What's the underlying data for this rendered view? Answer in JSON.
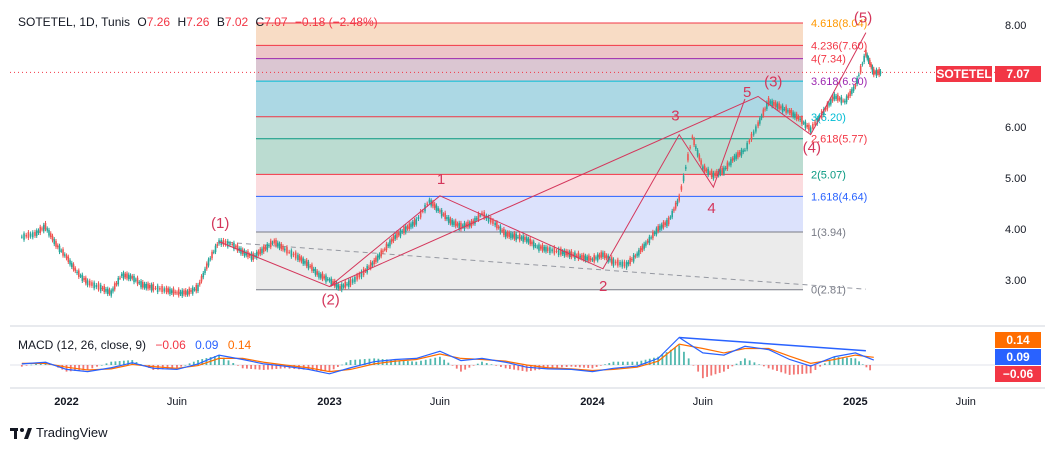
{
  "header": {
    "symbol": "SOTETEL, 1D, Tunis",
    "o_label": "O",
    "o": "7.26",
    "h_label": "H",
    "h": "7.26",
    "b_label": "B",
    "b": "7.02",
    "c_label": "C",
    "c": "7.07",
    "change": "−0.18 (−2.48%)"
  },
  "price_badge": {
    "name": "SOTETEL",
    "value": "7.07"
  },
  "macd": {
    "title": "MACD (12, 26, close, 9)",
    "hist": "−0.06",
    "macd": "0.09",
    "signal": "0.14",
    "badge_signal": "0.14",
    "badge_macd": "0.09",
    "badge_hist": "−0.06"
  },
  "colors": {
    "up": "#26a69a",
    "down": "#ef5350",
    "wave": "#d4365b",
    "macd": "#2962ff",
    "signal": "#ff6d00",
    "divergence": "#2962ff"
  },
  "brand": "TradingView",
  "chart_data": {
    "type": "line",
    "title": "SOTETEL, 1D, Tunis",
    "x_ticks": [
      "2022",
      "Juin",
      "2023",
      "Juin",
      "2024",
      "Juin",
      "2025",
      "Juin"
    ],
    "y_ticks": [
      "3.00",
      "4.00",
      "5.00",
      "6.00",
      "7.00",
      "8.00"
    ],
    "ylim": [
      2.55,
      8.3
    ],
    "series": [
      {
        "x": [
          2021.83,
          2021.88,
          2021.92,
          2021.96,
          2022.0,
          2022.04,
          2022.08,
          2022.13,
          2022.17,
          2022.21,
          2022.25,
          2022.29,
          2022.33,
          2022.38,
          2022.42,
          2022.46,
          2022.5,
          2022.54,
          2022.58,
          2022.63,
          2022.67,
          2022.71,
          2022.75,
          2022.79,
          2022.83,
          2022.88,
          2022.92,
          2022.96,
          2023.0,
          2023.04,
          2023.08,
          2023.13,
          2023.17,
          2023.21,
          2023.25,
          2023.29,
          2023.33,
          2023.38,
          2023.42,
          2023.46,
          2023.5,
          2023.54,
          2023.58,
          2023.63,
          2023.67,
          2023.71,
          2023.75,
          2023.79,
          2023.83,
          2023.88,
          2023.92,
          2023.96,
          2024.0,
          2024.04,
          2024.08,
          2024.13,
          2024.17,
          2024.21,
          2024.25,
          2024.29,
          2024.33,
          2024.38,
          2024.42,
          2024.46,
          2024.5,
          2024.54,
          2024.58,
          2024.63,
          2024.67,
          2024.71,
          2024.75,
          2024.79,
          2024.83,
          2024.88,
          2024.92,
          2024.96,
          2025.0,
          2025.04,
          2025.07
        ],
        "values": [
          3.85,
          3.9,
          4.05,
          3.7,
          3.45,
          3.15,
          2.95,
          2.85,
          2.75,
          3.1,
          3.05,
          2.9,
          2.85,
          2.8,
          2.75,
          2.75,
          2.85,
          3.35,
          3.75,
          3.7,
          3.55,
          3.45,
          3.6,
          3.75,
          3.6,
          3.45,
          3.3,
          3.1,
          3.0,
          2.85,
          2.95,
          3.15,
          3.35,
          3.6,
          3.85,
          4.0,
          4.15,
          4.55,
          4.35,
          4.15,
          4.05,
          4.1,
          4.3,
          4.1,
          3.9,
          3.85,
          3.8,
          3.65,
          3.6,
          3.55,
          3.5,
          3.45,
          3.4,
          3.5,
          3.35,
          3.3,
          3.5,
          3.75,
          4.0,
          4.15,
          4.6,
          5.8,
          5.2,
          5.05,
          5.15,
          5.4,
          5.55,
          6.05,
          6.5,
          6.4,
          6.3,
          6.15,
          5.95,
          6.3,
          6.6,
          6.5,
          6.8,
          7.45,
          7.07
        ]
      }
    ],
    "fib_levels": [
      {
        "ratio": "0",
        "value": 2.81,
        "label": "0(2.81)"
      },
      {
        "ratio": "1",
        "value": 3.94,
        "label": "1(3.94)"
      },
      {
        "ratio": "1.618",
        "value": 4.64,
        "label": "1.618(4.64)"
      },
      {
        "ratio": "2",
        "value": 5.07,
        "label": "2(5.07)"
      },
      {
        "ratio": "2.618",
        "value": 5.77,
        "label": "2.618(5.77)"
      },
      {
        "ratio": "3",
        "value": 6.2,
        "label": "3(6.20)"
      },
      {
        "ratio": "3.618",
        "value": 6.9,
        "label": "3.618(6.90)"
      },
      {
        "ratio": "4",
        "value": 7.34,
        "label": "4(7.34)"
      },
      {
        "ratio": "4.236",
        "value": 7.6,
        "label": "4.236(7.60)"
      },
      {
        "ratio": "4.618",
        "value": 8.04,
        "label": "4.618(8.04)"
      }
    ],
    "wave_labels": [
      {
        "text": "(1)",
        "x": 2022.58,
        "y": 3.75
      },
      {
        "text": "(2)",
        "x": 2023.0,
        "y": 2.87
      },
      {
        "text": "1",
        "x": 2023.42,
        "y": 4.65
      },
      {
        "text": "2",
        "x": 2024.04,
        "y": 3.22
      },
      {
        "text": "3",
        "x": 2024.33,
        "y": 5.85
      },
      {
        "text": "4",
        "x": 2024.46,
        "y": 4.82
      },
      {
        "text": "5",
        "x": 2024.58,
        "y": 6.55
      },
      {
        "text": "(3)",
        "x": 2024.63,
        "y": 6.6
      },
      {
        "text": "(4)",
        "x": 2024.83,
        "y": 5.85
      },
      {
        "text": "(5)",
        "x": 2025.04,
        "y": 7.85
      }
    ],
    "macd_series": {
      "x": [
        2021.83,
        2021.92,
        2022.0,
        2022.08,
        2022.17,
        2022.25,
        2022.33,
        2022.42,
        2022.5,
        2022.58,
        2022.67,
        2022.75,
        2022.83,
        2022.92,
        2023.0,
        2023.08,
        2023.17,
        2023.25,
        2023.33,
        2023.42,
        2023.5,
        2023.58,
        2023.67,
        2023.75,
        2023.83,
        2023.92,
        2024.0,
        2024.08,
        2024.17,
        2024.25,
        2024.33,
        2024.42,
        2024.5,
        2024.58,
        2024.67,
        2024.75,
        2024.83,
        2024.92,
        2025.0,
        2025.07
      ],
      "macd": [
        0.02,
        0.05,
        -0.08,
        -0.12,
        -0.05,
        0.04,
        -0.06,
        -0.08,
        0.02,
        0.18,
        0.1,
        0.02,
        -0.02,
        -0.08,
        -0.16,
        -0.05,
        0.06,
        0.1,
        0.12,
        0.25,
        0.08,
        0.12,
        0.05,
        -0.04,
        -0.07,
        -0.08,
        -0.12,
        -0.06,
        -0.02,
        0.12,
        0.5,
        0.22,
        0.18,
        0.34,
        0.28,
        0.1,
        -0.02,
        0.15,
        0.22,
        0.09
      ],
      "signal": [
        0.03,
        0.03,
        -0.04,
        -0.09,
        -0.07,
        0.01,
        -0.03,
        -0.06,
        -0.01,
        0.12,
        0.12,
        0.05,
        0.0,
        -0.05,
        -0.12,
        -0.08,
        0.02,
        0.07,
        0.1,
        0.2,
        0.12,
        0.1,
        0.07,
        0.0,
        -0.05,
        -0.07,
        -0.1,
        -0.08,
        -0.04,
        0.07,
        0.38,
        0.3,
        0.22,
        0.3,
        0.3,
        0.16,
        0.03,
        0.1,
        0.18,
        0.14
      ]
    }
  }
}
